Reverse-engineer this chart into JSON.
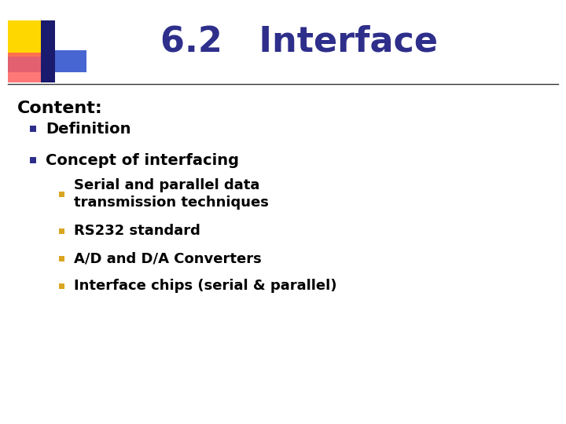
{
  "title": "6.2   Interface",
  "title_color": "#2E2E8B",
  "title_fontsize": 32,
  "background_color": "#FFFFFF",
  "line_color": "#333333",
  "content_label": "Content:",
  "content_fontsize": 16,
  "bullet1_items": [
    "Definition",
    "Concept of interfacing"
  ],
  "bullet2_items": [
    "Serial and parallel data\ntransmission techniques",
    "RS232 standard",
    "A/D and D/A Converters",
    "Interface chips (serial & parallel)"
  ],
  "bullet1_color": "#2E2E8B",
  "bullet2_color": "#DAA520",
  "text_color": "#000000",
  "logo_yellow": "#FFD700",
  "logo_pink": "#FF6060",
  "logo_blue": "#3355CC",
  "logo_darkblue": "#1A1A6E",
  "fig_width": 7.2,
  "fig_height": 5.4,
  "dpi": 100
}
